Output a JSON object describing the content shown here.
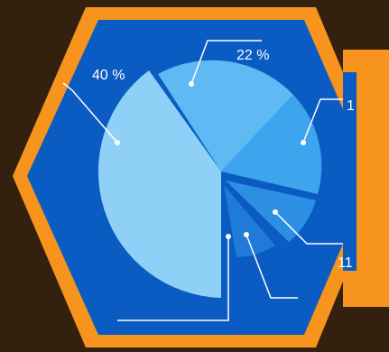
{
  "labels": [
    "40 %",
    "22 %",
    "1",
    "11"
  ]
}
